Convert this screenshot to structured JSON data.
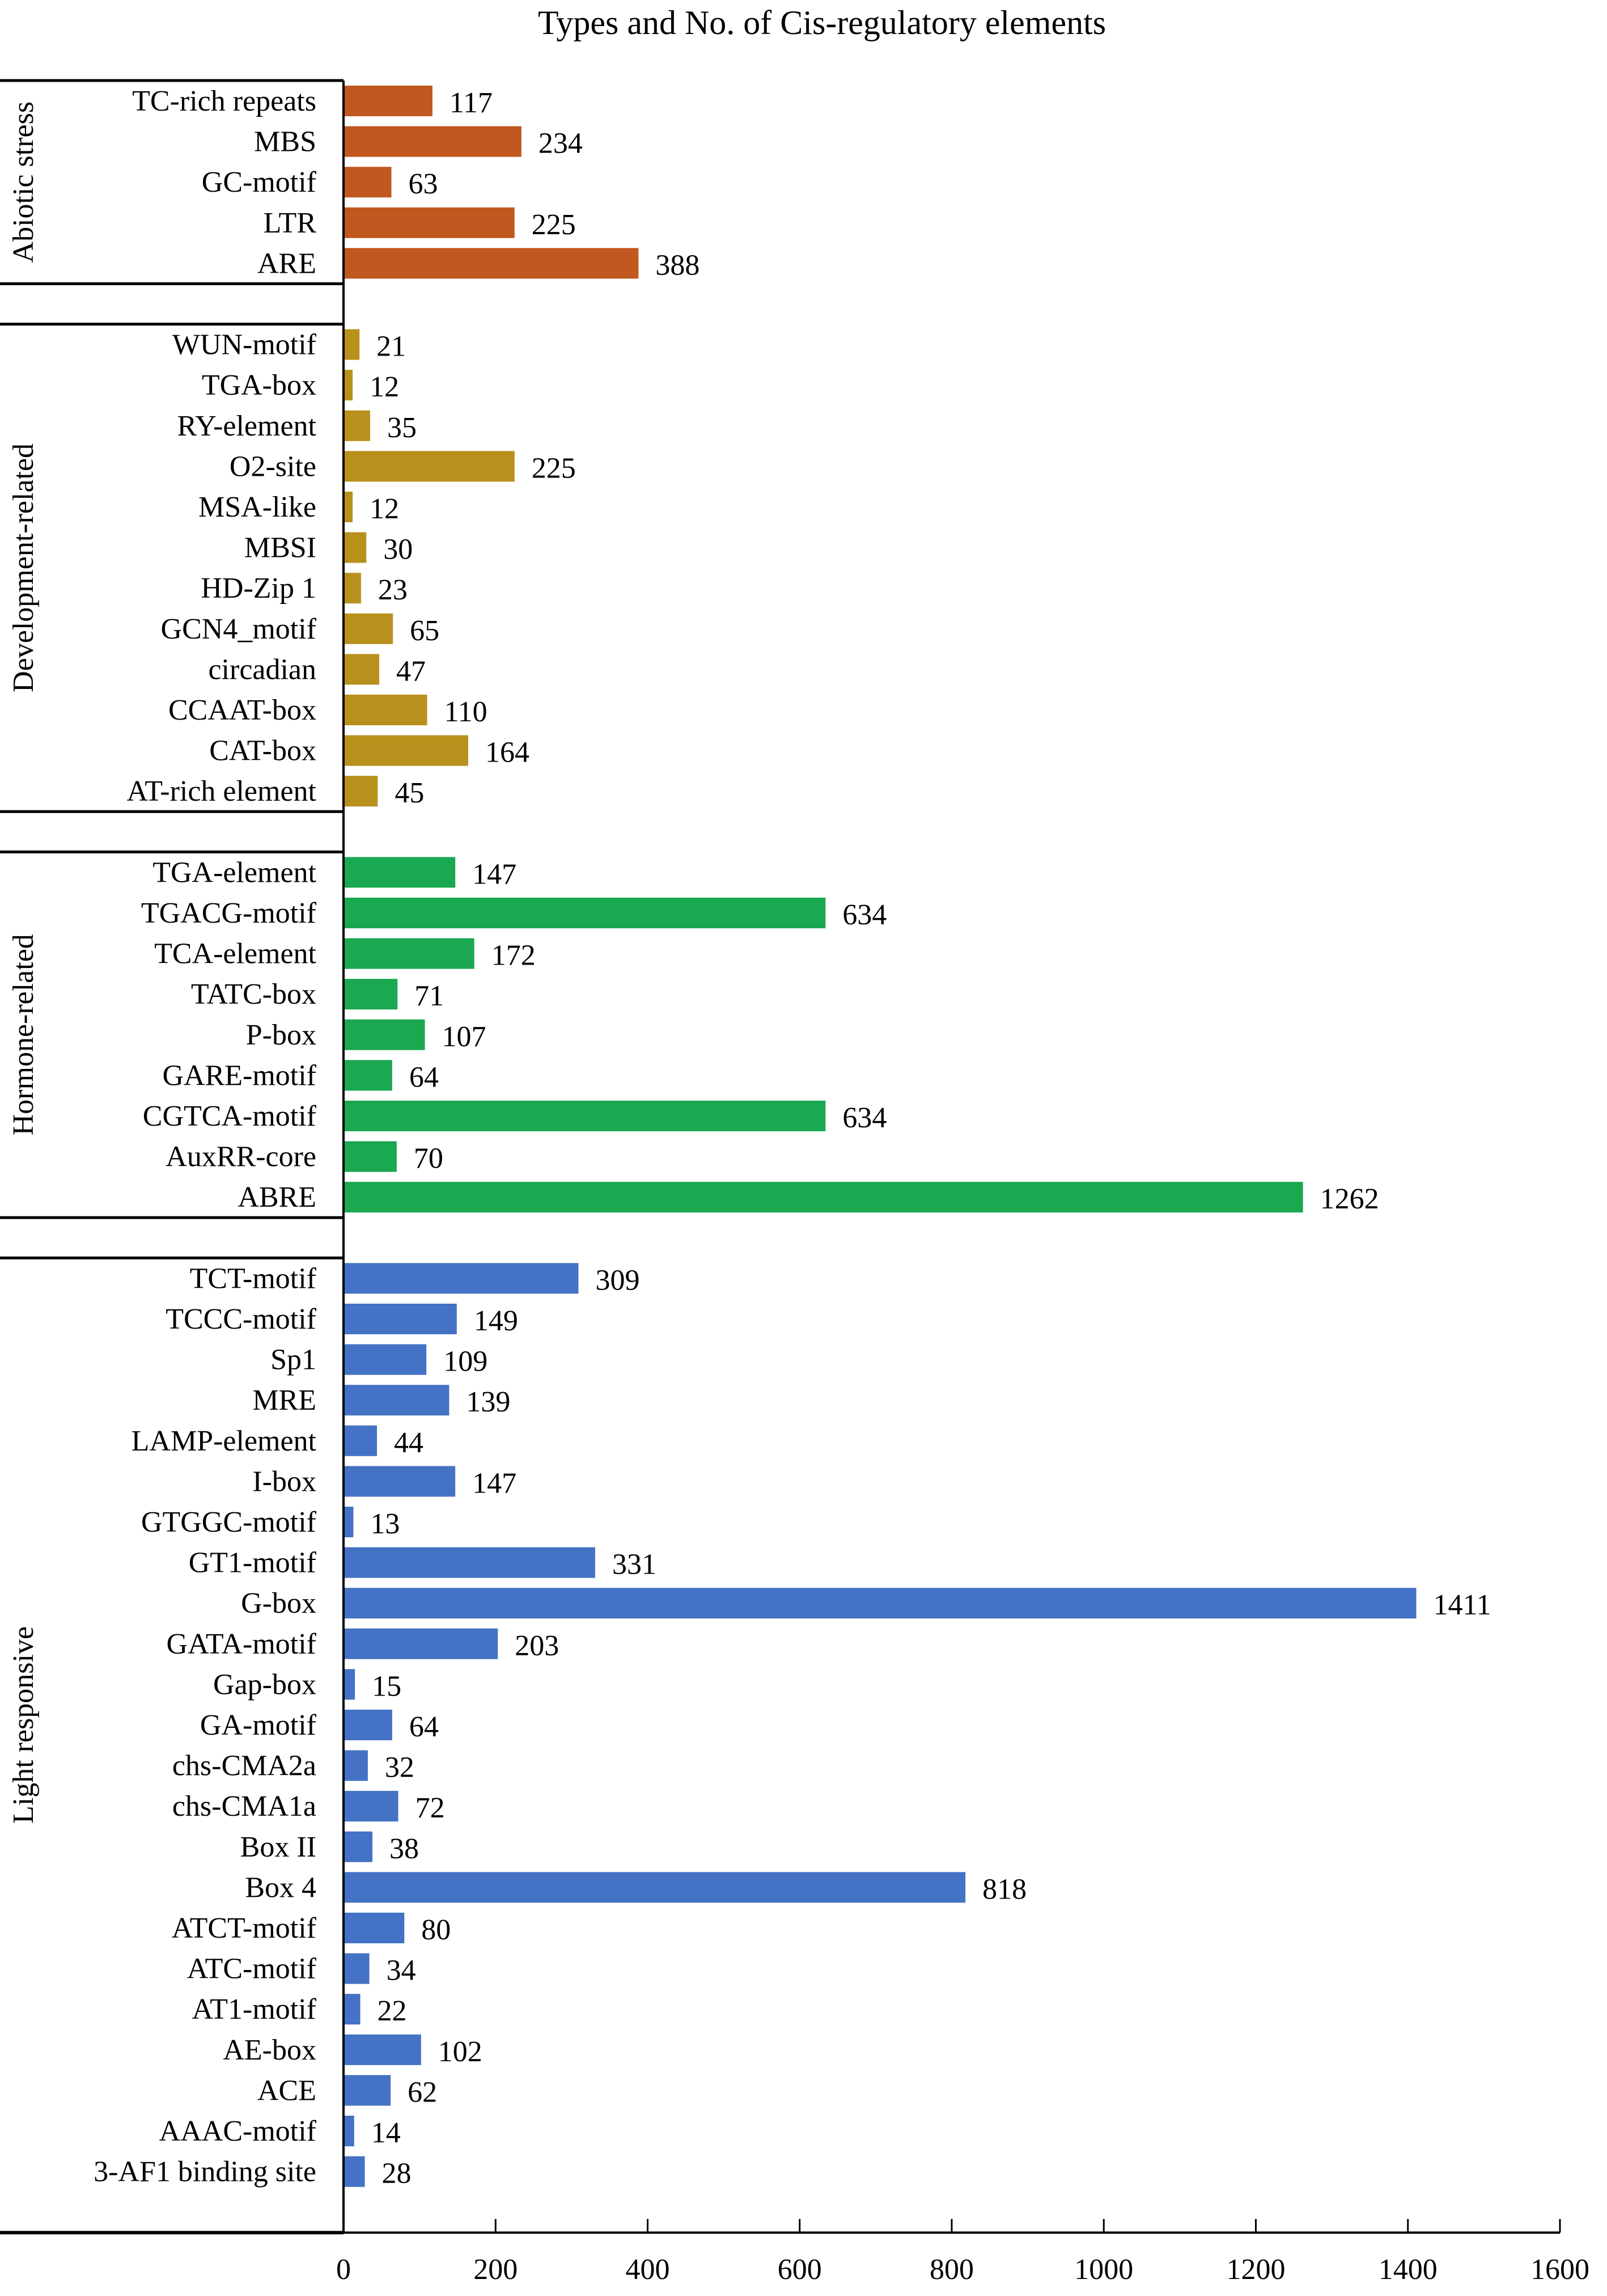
{
  "chart_data": {
    "type": "bar",
    "orientation": "horizontal",
    "title": "Types and No. of Cis-regulatory elements",
    "xlim": [
      0,
      1600
    ],
    "xticks": [
      0,
      200,
      400,
      600,
      800,
      1000,
      1200,
      1400,
      1600
    ],
    "grid": false,
    "groups": [
      {
        "name": "Abiotic stress",
        "color": "#C0581F",
        "categories": [
          "TC-rich repeats",
          "MBS",
          "GC-motif",
          "LTR",
          "ARE"
        ],
        "values": [
          117,
          234,
          63,
          225,
          388
        ]
      },
      {
        "name": "Development-related",
        "color": "#B8901C",
        "categories": [
          "WUN-motif",
          "TGA-box",
          "RY-element",
          "O2-site",
          "MSA-like",
          "MBSI",
          "HD-Zip 1",
          "GCN4_motif",
          "circadian",
          "CCAAT-box",
          "CAT-box",
          "AT-rich element"
        ],
        "values": [
          21,
          12,
          35,
          225,
          12,
          30,
          23,
          65,
          47,
          110,
          164,
          45
        ]
      },
      {
        "name": "Hormone-related",
        "color": "#1AA850",
        "categories": [
          "TGA-element",
          "TGACG-motif",
          "TCA-element",
          "TATC-box",
          "P-box",
          "GARE-motif",
          "CGTCA-motif",
          "AuxRR-core",
          "ABRE"
        ],
        "values": [
          147,
          634,
          172,
          71,
          107,
          64,
          634,
          70,
          1262
        ]
      },
      {
        "name": "Light responsive",
        "color": "#4472C4",
        "categories": [
          "TCT-motif",
          "TCCC-motif",
          "Sp1",
          "MRE",
          "LAMP-element",
          "I-box",
          "GTGGC-motif",
          "GT1-motif",
          "G-box",
          "GATA-motif",
          "Gap-box",
          "GA-motif",
          "chs-CMA2a",
          "chs-CMA1a",
          "Box II",
          "Box 4",
          "ATCT-motif",
          "ATC-motif",
          "AT1-motif",
          "AE-box",
          "ACE",
          "AAAC-motif",
          "3-AF1 binding site"
        ],
        "values": [
          309,
          149,
          109,
          139,
          44,
          147,
          13,
          331,
          1411,
          203,
          15,
          64,
          32,
          72,
          38,
          818,
          80,
          34,
          22,
          102,
          62,
          14,
          28
        ]
      }
    ]
  }
}
